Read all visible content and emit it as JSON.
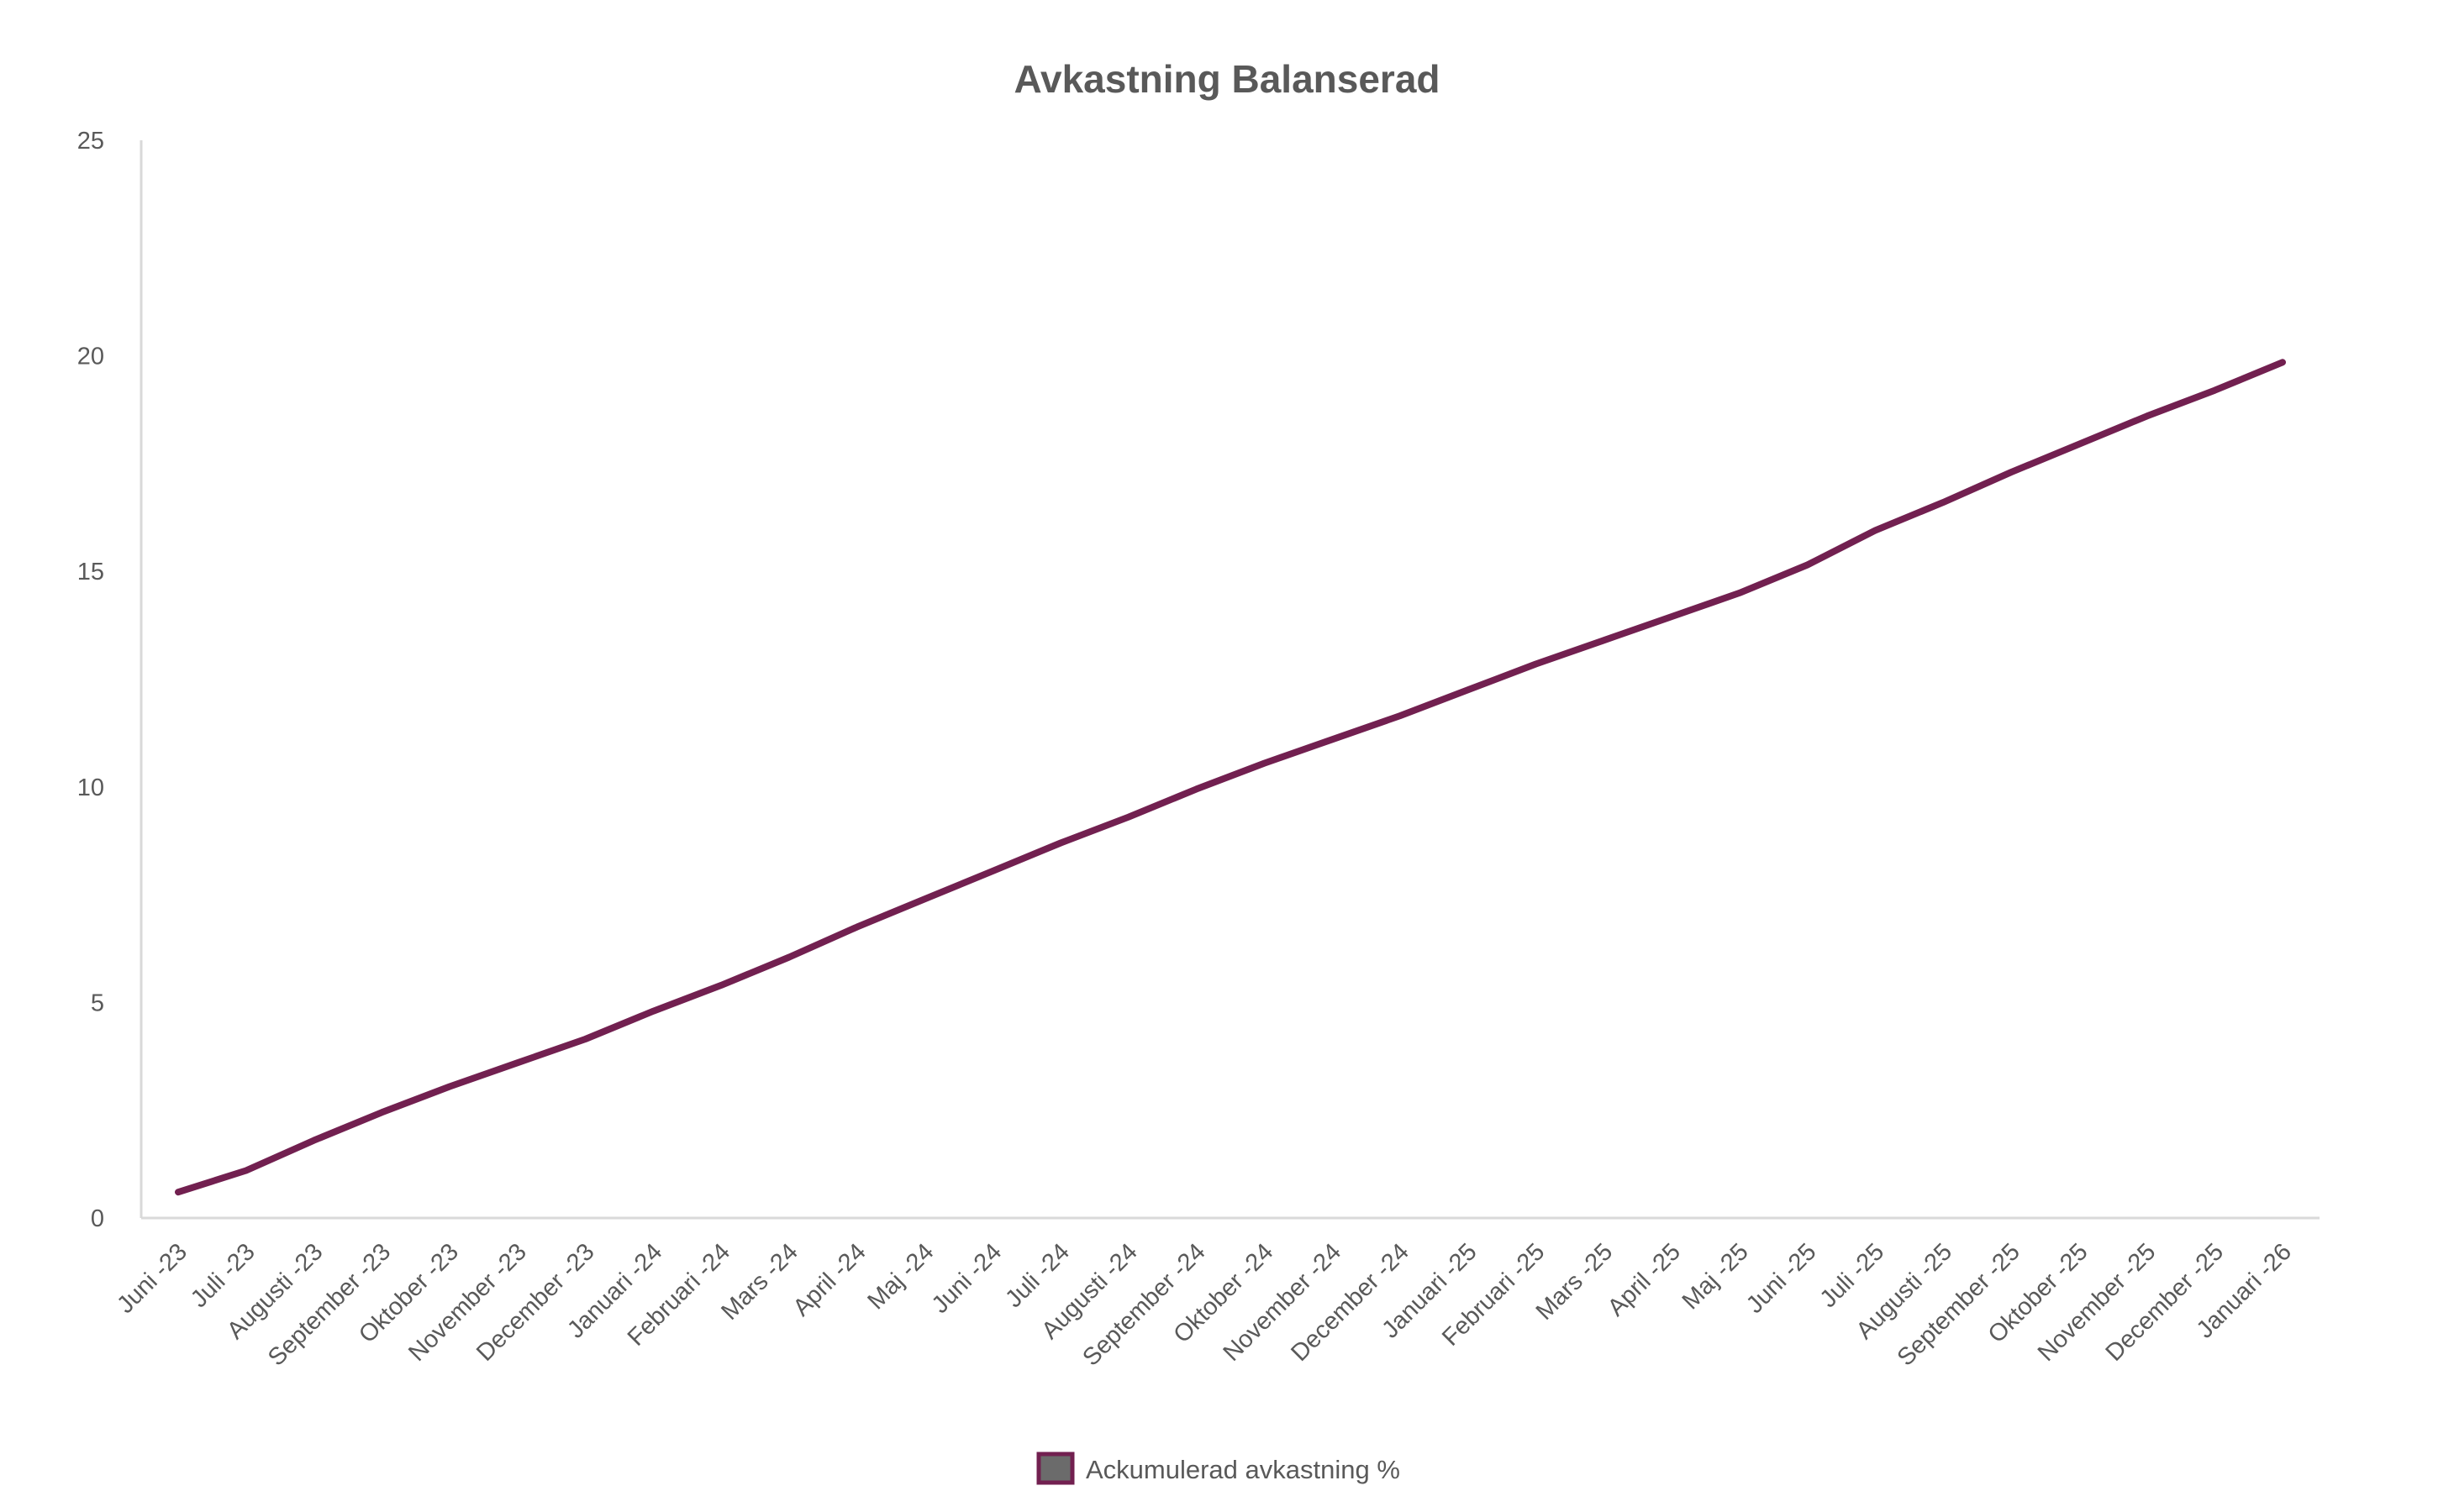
{
  "chart_data": {
    "type": "line",
    "title": "Avkastning Balanserad",
    "xlabel": "",
    "ylabel": "",
    "ylim": [
      0,
      25
    ],
    "yticks": [
      0,
      5,
      10,
      15,
      20,
      25
    ],
    "grid": false,
    "legend_position": "bottom",
    "categories": [
      "Juni -23",
      "Juli -23",
      "Augusti -23",
      "September -23",
      "Oktober -23",
      "November -23",
      "December -23",
      "Januari -24",
      "Februari -24",
      "Mars -24",
      "April -24",
      "Maj -24",
      "Juni -24",
      "Juli -24",
      "Augusti -24",
      "September -24",
      "Oktober -24",
      "November -24",
      "December -24",
      "Januari -25",
      "Februari -25",
      "Mars -25",
      "April -25",
      "Maj -25",
      "Juni -25",
      "Juli -25",
      "Augusti -25",
      "September -25",
      "Oktober -25",
      "November -25",
      "December -25",
      "Januari -26"
    ],
    "series": [
      {
        "name": "Ackumulerad avkastning %",
        "color": "#722050",
        "values": [
          0.6,
          1.1,
          1.8,
          2.45,
          3.05,
          3.6,
          4.15,
          4.8,
          5.4,
          6.05,
          6.75,
          7.4,
          8.05,
          8.7,
          9.3,
          9.95,
          10.55,
          11.1,
          11.65,
          12.25,
          12.85,
          13.4,
          13.95,
          14.5,
          15.15,
          15.95,
          16.6,
          17.3,
          17.95,
          18.6,
          19.2,
          19.85
        ]
      }
    ]
  },
  "colors": {
    "axis": "#d9d9d9",
    "text": "#595959",
    "legend_fill": "#6b6b6b"
  }
}
